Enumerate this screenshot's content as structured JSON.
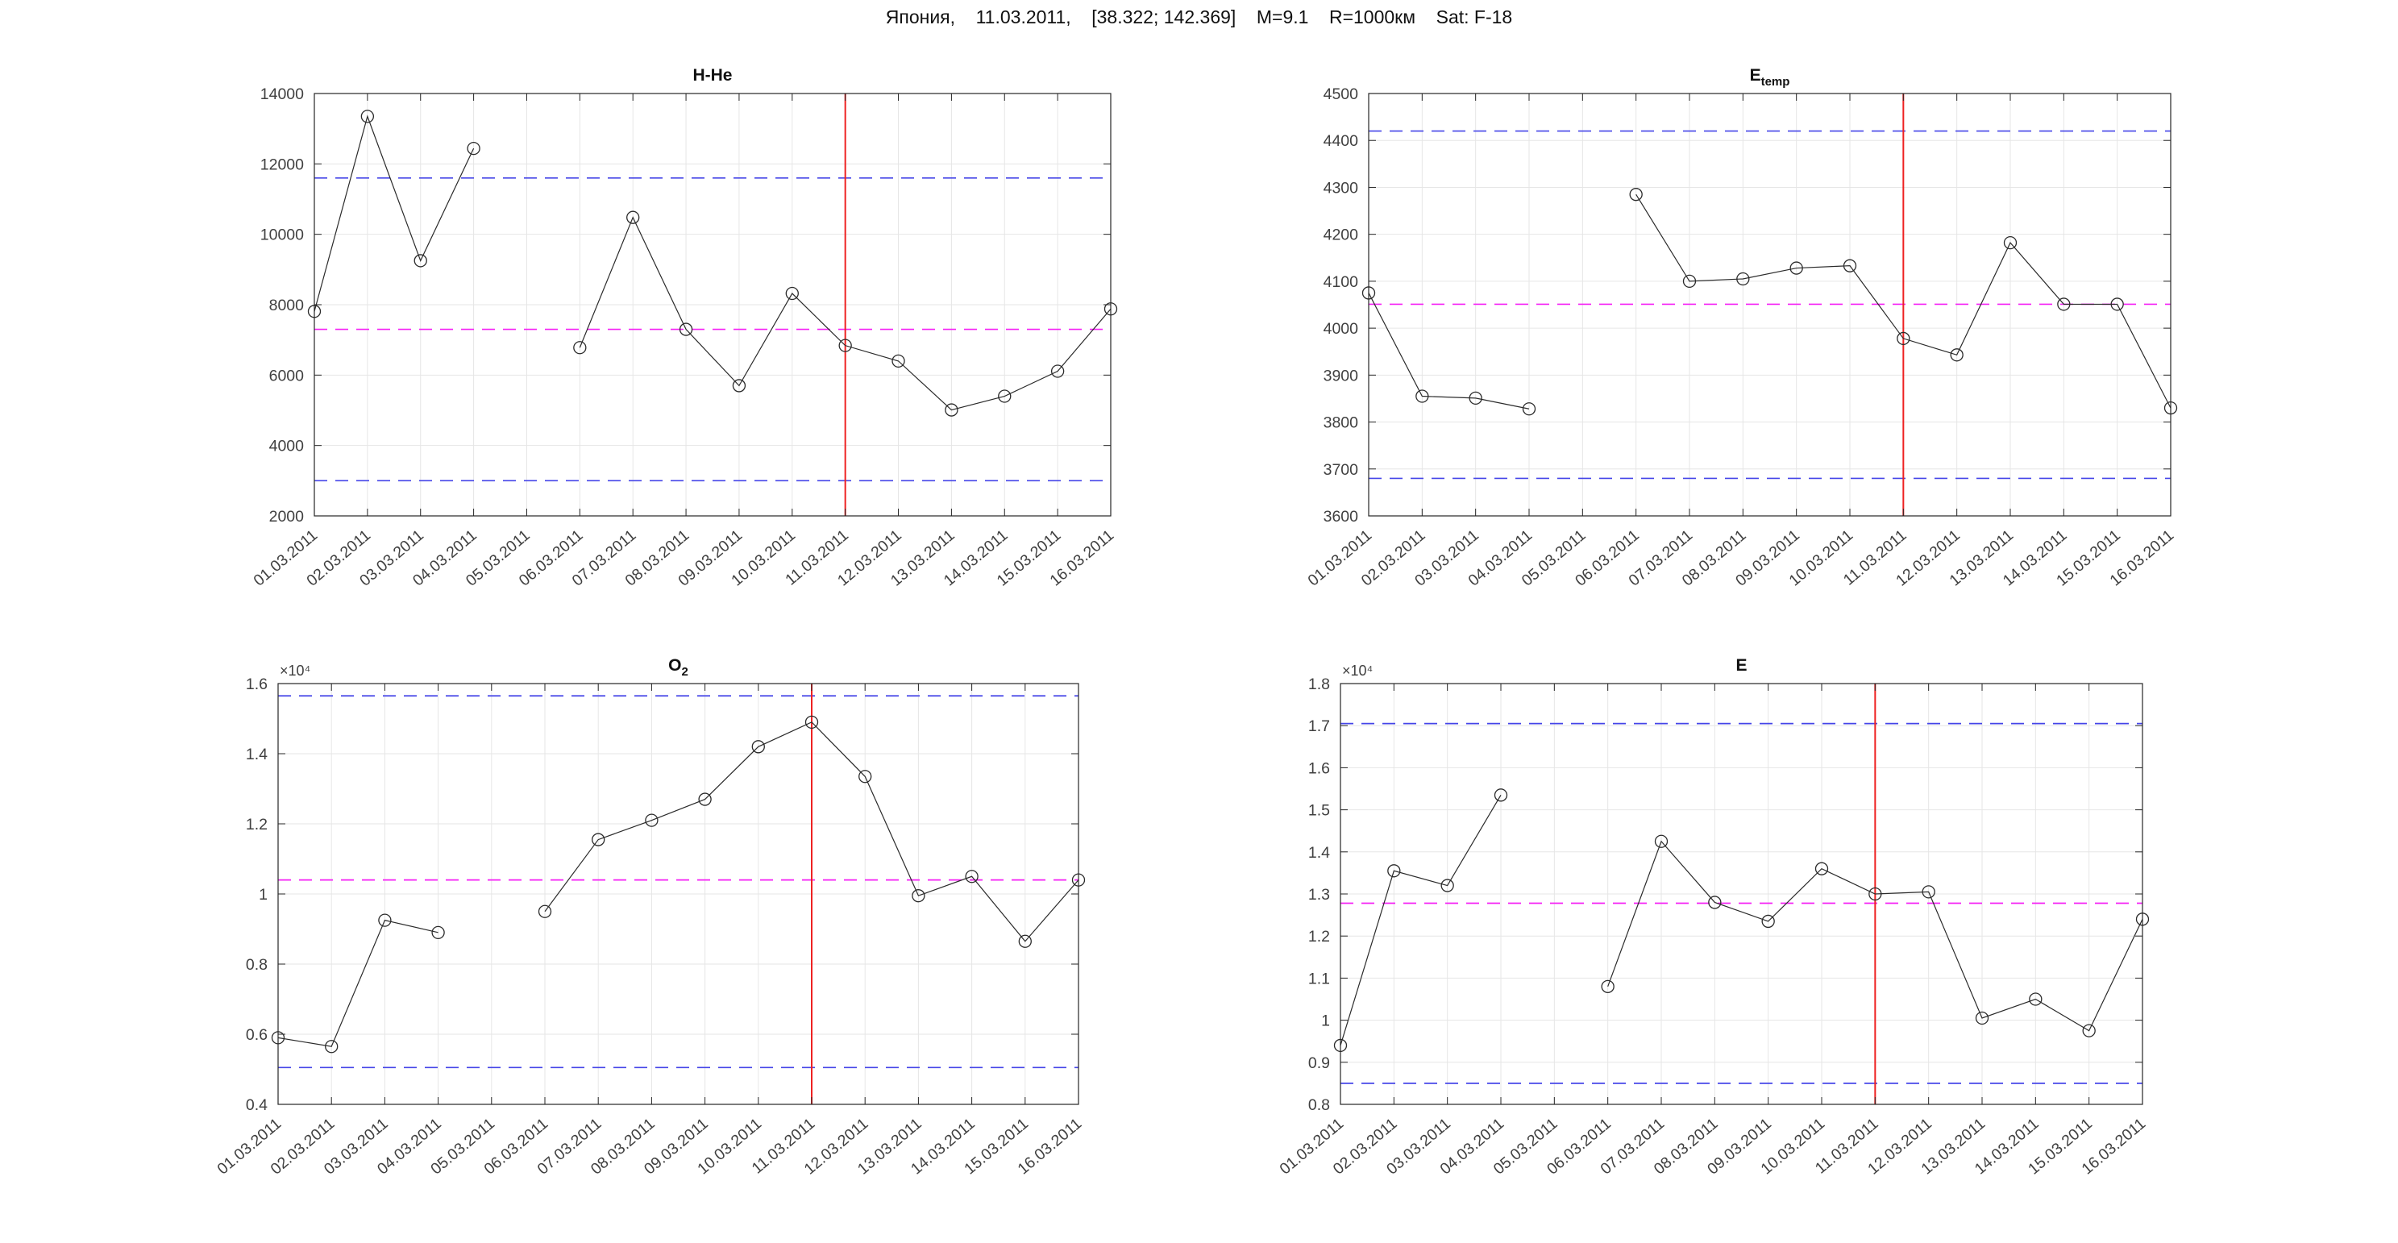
{
  "page": {
    "title": "Япония,    11.03.2011,    [38.322; 142.369]    M=9.1    R=1000км    Sat: F-18",
    "event_date": "11.03.2011",
    "magnitude": "M=9.1",
    "radius": "R=1000км",
    "satellite": "Sat: F-18",
    "coordinates": "[38.322; 142.369]"
  },
  "colors": {
    "data_line": "#2b2b2b",
    "marker": "#2b2b2b",
    "bound_line": "#4545e8",
    "mean_line": "#f520f5",
    "event_line": "#ee2222",
    "grid": "#e6e6e6",
    "axis": "#262626",
    "tick_text": "#404040"
  },
  "dates": [
    "01.03.2011",
    "02.03.2011",
    "03.03.2011",
    "04.03.2011",
    "05.03.2011",
    "06.03.2011",
    "07.03.2011",
    "08.03.2011",
    "09.03.2011",
    "10.03.2011",
    "11.03.2011",
    "12.03.2011",
    "13.03.2011",
    "14.03.2011",
    "15.03.2011",
    "16.03.2011"
  ],
  "event_index": 10,
  "chart_data": [
    {
      "id": "h_he",
      "type": "line",
      "title": "H-He",
      "title_sub": null,
      "y_exponent_label": null,
      "xlabel": "",
      "ylabel": "",
      "grid": true,
      "legend": "none",
      "ylim": [
        2000,
        14000
      ],
      "yticks": [
        2000,
        4000,
        6000,
        8000,
        10000,
        12000,
        14000
      ],
      "ytick_labels": [
        "2000",
        "4000",
        "6000",
        "8000",
        "10000",
        "12000",
        "14000"
      ],
      "values": [
        7810,
        13350,
        9250,
        12440,
        null,
        6780,
        10480,
        7300,
        5700,
        8320,
        6840,
        6400,
        5010,
        5400,
        6110,
        7880
      ],
      "lines": {
        "upper": 11600,
        "mean": 7300,
        "lower": 3000
      }
    },
    {
      "id": "e_temp",
      "type": "line",
      "title": "E",
      "title_sub": "temp",
      "y_exponent_label": null,
      "xlabel": "",
      "ylabel": "",
      "grid": true,
      "legend": "none",
      "ylim": [
        3600,
        4500
      ],
      "yticks": [
        3600,
        3700,
        3800,
        3900,
        4000,
        4100,
        4200,
        4300,
        4400,
        4500
      ],
      "ytick_labels": [
        "3600",
        "3700",
        "3800",
        "3900",
        "4000",
        "4100",
        "4200",
        "4300",
        "4400",
        "4500"
      ],
      "values": [
        4075,
        3855,
        3851,
        3828,
        null,
        4285,
        4100,
        4105,
        4128,
        4133,
        3978,
        3943,
        4182,
        4051,
        4051,
        3830
      ],
      "lines": {
        "upper": 4420,
        "mean": 4051,
        "lower": 3680
      }
    },
    {
      "id": "o2",
      "type": "line",
      "title": "O",
      "title_sub": "2",
      "y_exponent_label": "×10⁴",
      "xlabel": "",
      "ylabel": "",
      "grid": true,
      "legend": "none",
      "ylim": [
        0.4,
        1.6
      ],
      "yticks": [
        0.4,
        0.6,
        0.8,
        1,
        1.2,
        1.4,
        1.6
      ],
      "ytick_labels": [
        "0.4",
        "0.6",
        "0.8",
        "1",
        "1.2",
        "1.4",
        "1.6"
      ],
      "values": [
        0.59,
        0.565,
        0.925,
        0.89,
        null,
        0.95,
        1.155,
        1.21,
        1.27,
        1.42,
        1.49,
        1.335,
        0.995,
        1.05,
        0.865,
        1.04
      ],
      "lines": {
        "upper": 1.565,
        "mean": 1.04,
        "lower": 0.505
      }
    },
    {
      "id": "e",
      "type": "line",
      "title": "E",
      "title_sub": null,
      "y_exponent_label": "×10⁴",
      "xlabel": "",
      "ylabel": "",
      "grid": true,
      "legend": "none",
      "ylim": [
        0.8,
        1.8
      ],
      "yticks": [
        0.8,
        0.9,
        1,
        1.1,
        1.2,
        1.3,
        1.4,
        1.5,
        1.6,
        1.7,
        1.8
      ],
      "ytick_labels": [
        "0.8",
        "0.9",
        "1",
        "1.1",
        "1.2",
        "1.3",
        "1.4",
        "1.5",
        "1.6",
        "1.7",
        "1.8"
      ],
      "values": [
        0.94,
        1.355,
        1.32,
        1.535,
        null,
        1.08,
        1.425,
        1.28,
        1.235,
        1.36,
        1.3,
        1.305,
        1.005,
        1.05,
        0.975,
        1.24
      ],
      "lines": {
        "upper": 1.705,
        "mean": 1.278,
        "lower": 0.85
      }
    }
  ]
}
